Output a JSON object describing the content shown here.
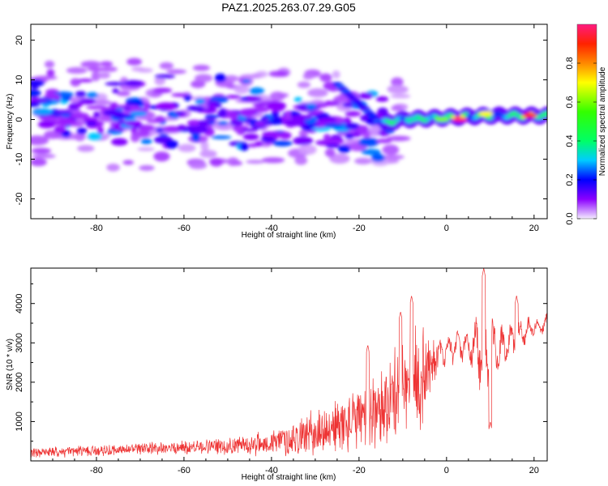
{
  "title": "PAZ1.2025.263.07.29.G05",
  "chart_data": [
    {
      "type": "heatmap",
      "xlabel": "Height of straight line (km)",
      "ylabel": "Frequency (Hz)",
      "xlim": [
        -95,
        23
      ],
      "ylim": [
        -25,
        24
      ],
      "xticks": [
        -80,
        -60,
        -40,
        -20,
        0,
        20
      ],
      "yticks": [
        -20,
        -10,
        0,
        10,
        20
      ],
      "colorbar": {
        "label": "Normalized spectral amplitude",
        "range": [
          0.0,
          1.0
        ],
        "ticks": [
          0.0,
          0.2,
          0.4,
          0.6,
          0.8
        ],
        "tick_labels": [
          "0.0",
          "0.2",
          "0.4",
          "0.6",
          "0.8"
        ]
      },
      "ridge": [
        {
          "x": -95,
          "f": 4
        },
        {
          "x": -85,
          "f": 2
        },
        {
          "x": -70,
          "f": 1
        },
        {
          "x": -55,
          "f": 1
        },
        {
          "x": -40,
          "f": 1
        },
        {
          "x": -25,
          "f": 0.5
        },
        {
          "x": -15,
          "f": -1
        },
        {
          "x": -10,
          "f": 0
        },
        {
          "x": 0,
          "f": 0.5
        },
        {
          "x": 10,
          "f": 1
        },
        {
          "x": 22,
          "f": 1
        }
      ],
      "hotspots": [
        {
          "x": 3,
          "f": 0,
          "a": 1.0
        },
        {
          "x": 19,
          "f": 1,
          "a": 0.95
        },
        {
          "x": 9,
          "f": 1.5,
          "a": 0.7
        },
        {
          "x": -1,
          "f": 0,
          "a": 0.6
        },
        {
          "x": -8,
          "f": 0,
          "a": 0.35
        }
      ]
    },
    {
      "type": "line",
      "xlabel": "Height of straight line (km)",
      "ylabel": "SNR (10 * v/v)",
      "xlim": [
        -95,
        23
      ],
      "ylim": [
        0,
        4900
      ],
      "xticks": [
        -80,
        -60,
        -40,
        -20,
        0,
        20
      ],
      "yticks": [
        1000,
        2000,
        3000,
        4000
      ],
      "color": "#ee3333",
      "envelope": [
        {
          "x": -95,
          "mean": 200,
          "amp": 120
        },
        {
          "x": -70,
          "mean": 300,
          "amp": 140
        },
        {
          "x": -50,
          "mean": 380,
          "amp": 200
        },
        {
          "x": -40,
          "mean": 450,
          "amp": 300
        },
        {
          "x": -30,
          "mean": 700,
          "amp": 550
        },
        {
          "x": -20,
          "mean": 1050,
          "amp": 750
        },
        {
          "x": -12,
          "mean": 1600,
          "amp": 1100
        },
        {
          "x": -6,
          "mean": 2100,
          "amp": 1300
        },
        {
          "x": -2,
          "mean": 2700,
          "amp": 400
        },
        {
          "x": 5,
          "mean": 3000,
          "amp": 500
        },
        {
          "x": 8,
          "mean": 2900,
          "amp": 1500
        },
        {
          "x": 12,
          "mean": 2800,
          "amp": 700
        },
        {
          "x": 18,
          "mean": 3300,
          "amp": 400
        },
        {
          "x": 23,
          "mean": 3500,
          "amp": 250
        }
      ],
      "peaks": [
        {
          "x": -8,
          "y": 4200
        },
        {
          "x": 8.5,
          "y": 4900
        },
        {
          "x": 16,
          "y": 4200
        },
        {
          "x": -10.5,
          "y": 3800
        },
        {
          "x": 10,
          "y": 1000
        },
        {
          "x": -18,
          "y": 2950
        }
      ]
    }
  ]
}
